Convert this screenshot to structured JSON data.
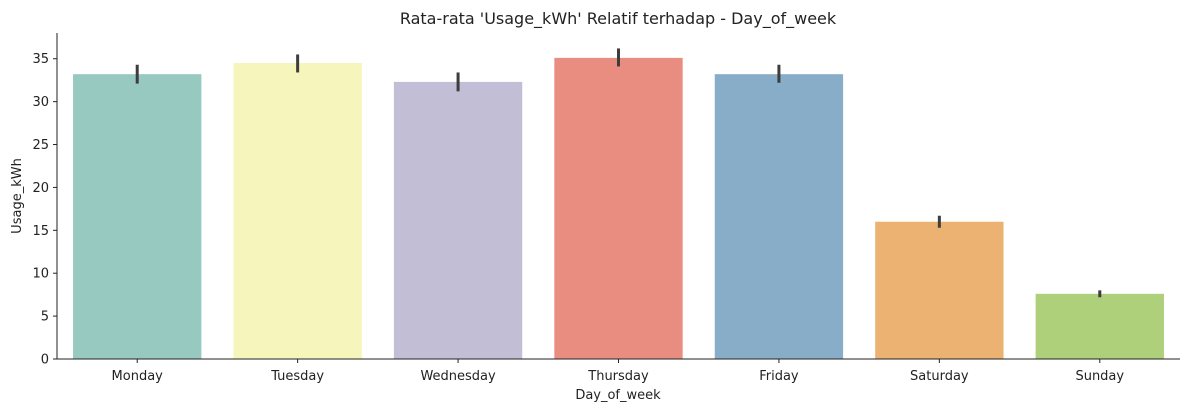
{
  "chart_data": {
    "type": "bar",
    "title": "Rata-rata 'Usage_kWh' Relatif terhadap - Day_of_week",
    "xlabel": "Day_of_week",
    "ylabel": "Usage_kWh",
    "categories": [
      "Monday",
      "Tuesday",
      "Wednesday",
      "Thursday",
      "Friday",
      "Saturday",
      "Sunday"
    ],
    "values": [
      33.2,
      34.5,
      32.3,
      35.1,
      33.2,
      16.0,
      7.6
    ],
    "error_low": [
      32.1,
      33.4,
      31.2,
      34.1,
      32.2,
      15.3,
      7.2
    ],
    "error_high": [
      34.3,
      35.5,
      33.4,
      36.2,
      34.3,
      16.7,
      8.0
    ],
    "colors": [
      "#98c9c1",
      "#f6f5bb",
      "#c1bed6",
      "#e98d81",
      "#88adc8",
      "#ebb272",
      "#afd07a"
    ],
    "ylim": [
      0,
      38
    ],
    "yticks": [
      0,
      5,
      10,
      15,
      20,
      25,
      30,
      35
    ],
    "grid": false,
    "legend": "none"
  }
}
